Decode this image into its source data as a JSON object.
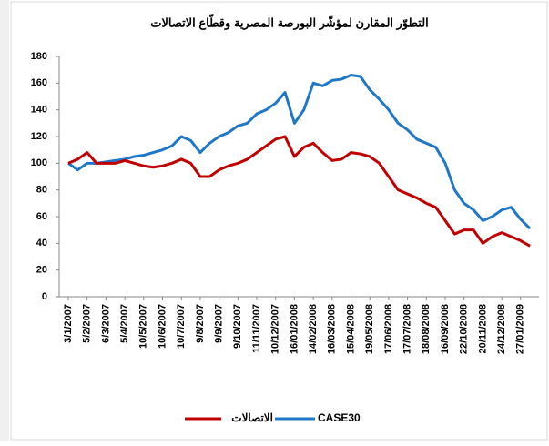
{
  "chart_data": {
    "type": "line",
    "title": "التطوّر المقارن لمؤشّر البورصة المصرية وقطّاع الاتصالات",
    "categories": [
      "3/1/2007",
      null,
      "5/2/2007",
      null,
      "6/3/2007",
      null,
      "5/4/2007",
      null,
      "10/5/2007",
      null,
      "10/6/2007",
      null,
      "10/7/2007",
      null,
      "9/8/2007",
      null,
      "9/9/2007",
      null,
      "9/10/2007",
      null,
      "11/11/2007",
      null,
      "10/12/2007",
      null,
      "16/01/2008",
      null,
      "14/02/2008",
      null,
      "16/03/2008",
      null,
      "15/04/2008",
      null,
      "19/05/2008",
      null,
      "17/06/2008",
      null,
      "17/07/2008",
      null,
      "18/08/2008",
      null,
      "16/09/2008",
      null,
      "22/10/2008",
      null,
      "20/11/2008",
      null,
      "24/12/2008",
      null,
      "27/01/2009",
      null
    ],
    "series": [
      {
        "name": "الاتصالات",
        "color": "#c00000",
        "values": [
          100,
          103,
          108,
          100,
          100,
          100,
          102,
          100,
          98,
          97,
          98,
          100,
          103,
          100,
          90,
          90,
          95,
          98,
          100,
          103,
          108,
          113,
          118,
          120,
          105,
          112,
          115,
          108,
          102,
          103,
          108,
          107,
          105,
          100,
          90,
          80,
          77,
          74,
          70,
          67,
          57,
          47,
          50,
          50,
          40,
          45,
          48,
          45,
          42,
          38
        ]
      },
      {
        "name": "CASE30",
        "color": "#1f77c8",
        "values": [
          100,
          95,
          100,
          100,
          101,
          102,
          103,
          105,
          106,
          108,
          110,
          113,
          120,
          117,
          108,
          115,
          120,
          123,
          128,
          130,
          137,
          140,
          145,
          153,
          130,
          140,
          160,
          158,
          162,
          163,
          166,
          165,
          155,
          148,
          140,
          130,
          125,
          118,
          115,
          112,
          100,
          80,
          70,
          65,
          57,
          60,
          65,
          67,
          58,
          51
        ]
      }
    ],
    "ylim": [
      0,
      180
    ],
    "yticks": [
      0,
      20,
      40,
      60,
      80,
      100,
      120,
      140,
      160,
      180
    ],
    "legend": "bottom"
  }
}
